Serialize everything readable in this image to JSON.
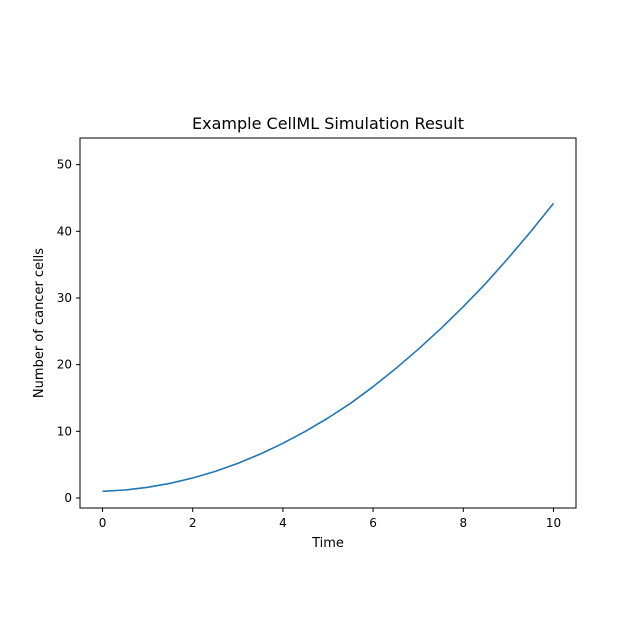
{
  "chart_data": {
    "type": "line",
    "title": "Example CellML Simulation Result",
    "xlabel": "Time",
    "ylabel": "Number of cancer cells",
    "xlim": [
      -0.5,
      10.5
    ],
    "ylim": [
      -1.5,
      54
    ],
    "xticks": [
      0,
      2,
      4,
      6,
      8,
      10
    ],
    "yticks": [
      0,
      10,
      20,
      30,
      40,
      50
    ],
    "grid": false,
    "series": [
      {
        "color": "#1f77b4",
        "x": [
          0,
          0.5,
          1,
          1.5,
          2,
          2.5,
          3,
          3.5,
          4,
          4.5,
          5,
          5.5,
          6,
          6.5,
          7,
          7.5,
          8,
          8.5,
          9,
          9.5,
          10
        ],
        "y": [
          1.0,
          1.2,
          1.6,
          2.2,
          3.0,
          4.0,
          5.2,
          6.6,
          8.2,
          10.0,
          12.0,
          14.2,
          16.7,
          19.4,
          22.3,
          25.4,
          28.7,
          32.2,
          36.0,
          40.0,
          44.2
        ]
      }
    ]
  }
}
